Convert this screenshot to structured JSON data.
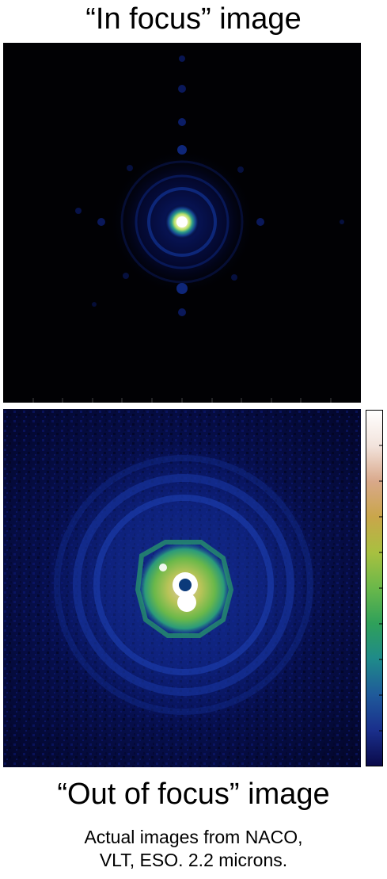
{
  "top_title": "“In focus” image",
  "bottom_title": "“Out of focus” image",
  "caption": {
    "line1": "Actual images from NACO,",
    "line2": "VLT, ESO. 2.2 microns."
  },
  "colormap": [
    "#0a0a4a",
    "#1a2f8c",
    "#1f5a9a",
    "#1f8a8a",
    "#2fa05a",
    "#6ab84a",
    "#a8c040",
    "#c9a64a",
    "#d9a88a",
    "#f2e3dc",
    "#ffffff"
  ]
}
